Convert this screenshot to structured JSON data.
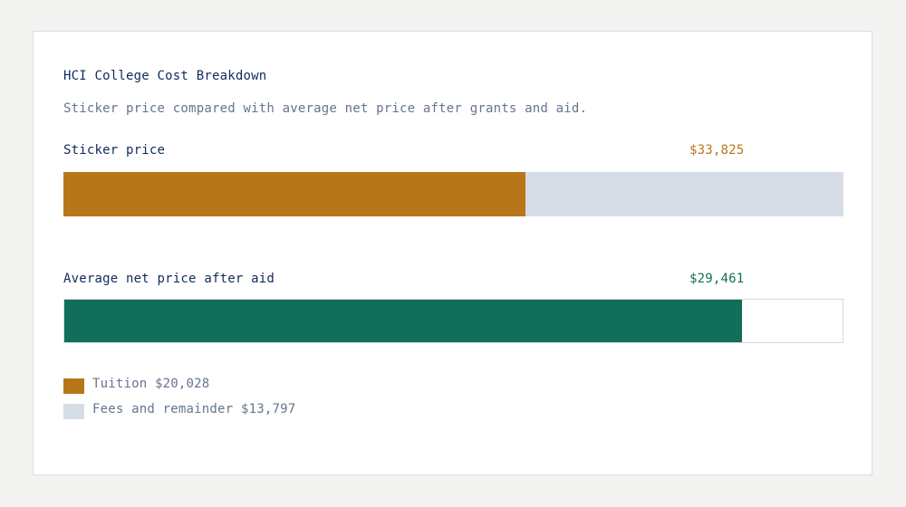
{
  "card": {
    "title": "HCI College Cost Breakdown",
    "subtitle": "Sticker price compared with average net price after grants and aid."
  },
  "colors": {
    "tuition": "#b8761b",
    "fees": "#d7dde6",
    "net_price": "#116e58",
    "title": "#102a5c",
    "muted": "#66758c",
    "track_border": "#d3dbe3"
  },
  "rows": [
    {
      "label": "Sticker price",
      "value_text": "$33,825",
      "value_color": "#b8761b"
    },
    {
      "label": "Average net price after aid",
      "value_text": "$29,461",
      "value_color": "#116e58"
    }
  ],
  "legend": [
    {
      "label": "Tuition $20,028",
      "color": "#b8761b"
    },
    {
      "label": "Fees and remainder $13,797",
      "color": "#d7dde6"
    }
  ],
  "chart_data": {
    "type": "bar",
    "orientation": "horizontal",
    "title": "HCI College Cost Breakdown",
    "subtitle": "Sticker price compared with average net price after grants and aid.",
    "categories": [
      "Sticker price",
      "Average net price after aid"
    ],
    "scale_max": 33825,
    "series": [
      {
        "name": "Tuition",
        "values": [
          20028,
          null
        ],
        "color": "#b8761b"
      },
      {
        "name": "Fees and remainder",
        "values": [
          13797,
          null
        ],
        "color": "#d7dde6"
      },
      {
        "name": "Average net price after aid",
        "values": [
          null,
          29461
        ],
        "color": "#116e58"
      }
    ],
    "totals": [
      33825,
      29461
    ],
    "legend": [
      "Tuition $20,028",
      "Fees and remainder $13,797"
    ],
    "legend_position": "bottom-left",
    "grid": false
  }
}
